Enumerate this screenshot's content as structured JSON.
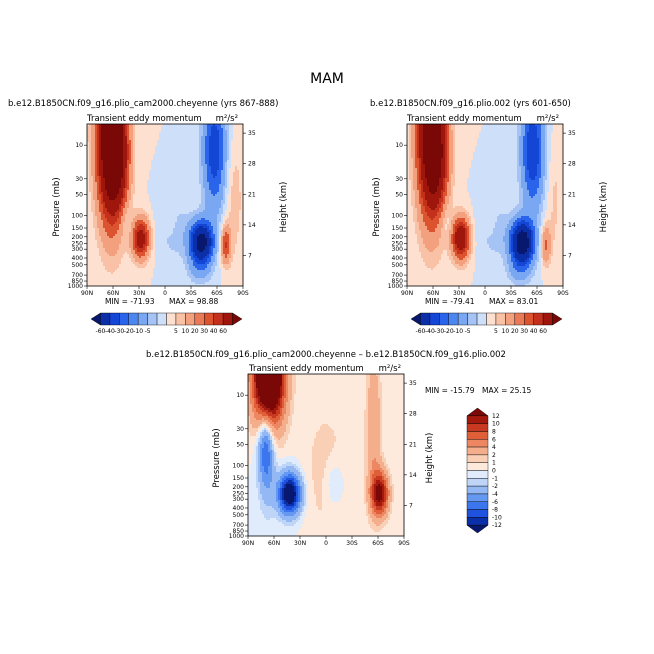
{
  "chart_data": {
    "type": "contour",
    "title": "MAM",
    "palette": {
      "abs": [
        "#08186e",
        "#0b2fa8",
        "#1446d6",
        "#2a64ea",
        "#4c86f0",
        "#7aa7f2",
        "#a5c4f5",
        "#cddff9",
        "#fde0cf",
        "#f9c2a6",
        "#f3a07e",
        "#ea7a57",
        "#db532f",
        "#c3301b",
        "#9e160c",
        "#7a0806"
      ],
      "diff": [
        "#08186e",
        "#0b2fa8",
        "#1f52df",
        "#3b76ee",
        "#6598f1",
        "#93b8f4",
        "#bed5f8",
        "#e0ebfb",
        "#fdeadd",
        "#f9d0b6",
        "#f4ae8b",
        "#ec8762",
        "#df5f39",
        "#c83922",
        "#a3190d",
        "#7a0806"
      ]
    },
    "panels": [
      {
        "id": "case1",
        "case_title": "b.e12.B1850CN.f09_g16.plio_cam2000.cheyenne (yrs 867-888)",
        "variable": "Transient eddy momentum",
        "units": "m²/s²",
        "min_label": "MIN = -71.93",
        "max_label": "MAX =  98.88",
        "x_ticks": [
          "90N",
          "60N",
          "30N",
          "0",
          "30S",
          "60S",
          "90S"
        ],
        "y_ticks": [
          "10",
          "30",
          "50",
          "100",
          "150",
          "200",
          "250",
          "300",
          "400",
          "500",
          "700",
          "850",
          "1000"
        ],
        "height_ticks": [
          "35",
          "28",
          "21",
          "14",
          "7"
        ],
        "ylabel": "Pressure  (mb)",
        "y2label": "Height  (km)",
        "features": [
          {
            "lat": 62,
            "p": 7,
            "amp": 98.9,
            "wlat": 11,
            "wz": 13
          },
          {
            "lat": 55,
            "p": 18,
            "amp": 28,
            "wlat": 9,
            "wz": 7
          },
          {
            "lat": 28,
            "p": 210,
            "amp": 50,
            "wlat": 7,
            "wz": 3.2
          },
          {
            "lat": -42,
            "p": 240,
            "amp": -71.9,
            "wlat": 9,
            "wz": 3.2
          },
          {
            "lat": -40,
            "p": 600,
            "amp": -10,
            "wlat": 10,
            "wz": 2.5
          },
          {
            "lat": -57,
            "p": 12,
            "amp": -38,
            "wlat": 9,
            "wz": 9
          },
          {
            "lat": -10,
            "p": 160,
            "amp": -8,
            "wlat": 14,
            "wz": 5
          },
          {
            "lat": -6,
            "p": 110,
            "amp": 6,
            "wlat": 5,
            "wz": 3
          },
          {
            "lat": -70,
            "p": 260,
            "amp": 30,
            "wlat": 4,
            "wz": 3
          },
          {
            "lat": 45,
            "p": 120,
            "amp": -6,
            "wlat": 6,
            "wz": 3
          },
          {
            "lat": -80,
            "p": 60,
            "amp": 8,
            "wlat": 7,
            "wz": 10
          }
        ]
      },
      {
        "id": "case2",
        "case_title": "b.e12.B1850CN.f09_g16.plio.002 (yrs 601-650)",
        "variable": "Transient eddy momentum",
        "units": "m²/s²",
        "min_label": "MIN = -79.41",
        "max_label": "MAX =  83.01",
        "x_ticks": [
          "90N",
          "60N",
          "30N",
          "0",
          "30S",
          "60S",
          "90S"
        ],
        "y_ticks": [
          "10",
          "30",
          "50",
          "100",
          "150",
          "200",
          "250",
          "300",
          "400",
          "500",
          "700",
          "850",
          "1000"
        ],
        "height_ticks": [
          "35",
          "28",
          "21",
          "14",
          "7"
        ],
        "ylabel": "Pressure  (mb)",
        "y2label": "Height  (km)",
        "features": [
          {
            "lat": 62,
            "p": 7,
            "amp": 83,
            "wlat": 11,
            "wz": 13
          },
          {
            "lat": 55,
            "p": 18,
            "amp": 24,
            "wlat": 9,
            "wz": 7
          },
          {
            "lat": 28,
            "p": 210,
            "amp": 58,
            "wlat": 7,
            "wz": 3.3
          },
          {
            "lat": -43,
            "p": 240,
            "amp": -79.4,
            "wlat": 9,
            "wz": 3.3
          },
          {
            "lat": -40,
            "p": 600,
            "amp": -12,
            "wlat": 10,
            "wz": 2.5
          },
          {
            "lat": -55,
            "p": 12,
            "amp": -40,
            "wlat": 9,
            "wz": 9
          },
          {
            "lat": -10,
            "p": 160,
            "amp": -8,
            "wlat": 14,
            "wz": 5
          },
          {
            "lat": -6,
            "p": 110,
            "amp": 6,
            "wlat": 5,
            "wz": 3
          },
          {
            "lat": -70,
            "p": 260,
            "amp": 22,
            "wlat": 4,
            "wz": 3
          },
          {
            "lat": 45,
            "p": 120,
            "amp": -6,
            "wlat": 6,
            "wz": 3
          },
          {
            "lat": -80,
            "p": 60,
            "amp": 6,
            "wlat": 7,
            "wz": 10
          }
        ]
      },
      {
        "id": "diff",
        "case_title": "b.e12.B1850CN.f09_g16.plio_cam2000.cheyenne  –  b.e12.B1850CN.f09_g16.plio.002",
        "variable": "Transient eddy momentum",
        "units": "m²/s²",
        "min_label": "MIN = -15.79",
        "max_label": "MAX =  25.15",
        "x_ticks": [
          "90N",
          "60N",
          "30N",
          "0",
          "30S",
          "60S",
          "90S"
        ],
        "y_ticks": [
          "10",
          "30",
          "50",
          "100",
          "150",
          "200",
          "250",
          "300",
          "400",
          "500",
          "700",
          "850",
          "1000"
        ],
        "height_ticks": [
          "35",
          "28",
          "21",
          "14",
          "7"
        ],
        "ylabel": "Pressure  (mb)",
        "y2label": "Height  (km)",
        "features": [
          {
            "lat": 66,
            "p": 5,
            "amp": 25.2,
            "wlat": 12,
            "wz": 8
          },
          {
            "lat": 70,
            "p": 45,
            "amp": -6,
            "wlat": 6,
            "wz": 6
          },
          {
            "lat": 42,
            "p": 250,
            "amp": -15.8,
            "wlat": 9,
            "wz": 3.2
          },
          {
            "lat": 68,
            "p": 80,
            "amp": -4,
            "wlat": 7,
            "wz": 8
          },
          {
            "lat": -62,
            "p": 250,
            "amp": 13,
            "wlat": 7,
            "wz": 3.5
          },
          {
            "lat": -55,
            "p": 30,
            "amp": 4,
            "wlat": 6,
            "wz": 12
          },
          {
            "lat": -10,
            "p": 180,
            "amp": -2,
            "wlat": 8,
            "wz": 4
          },
          {
            "lat": 0,
            "p": 120,
            "amp": 1.5,
            "wlat": 20,
            "wz": 12
          }
        ]
      }
    ],
    "colorbar_abs": {
      "levels": [
        "-60",
        "-40",
        "-30",
        "-20",
        "-10",
        "-5",
        "5",
        "10",
        "20",
        "30",
        "40",
        "60"
      ]
    },
    "colorbar_diff": {
      "levels": [
        "12",
        "10",
        "8",
        "6",
        "4",
        "2",
        "1",
        "0",
        "-1",
        "-2",
        "-4",
        "-6",
        "-8",
        "-10",
        "-12"
      ]
    }
  }
}
